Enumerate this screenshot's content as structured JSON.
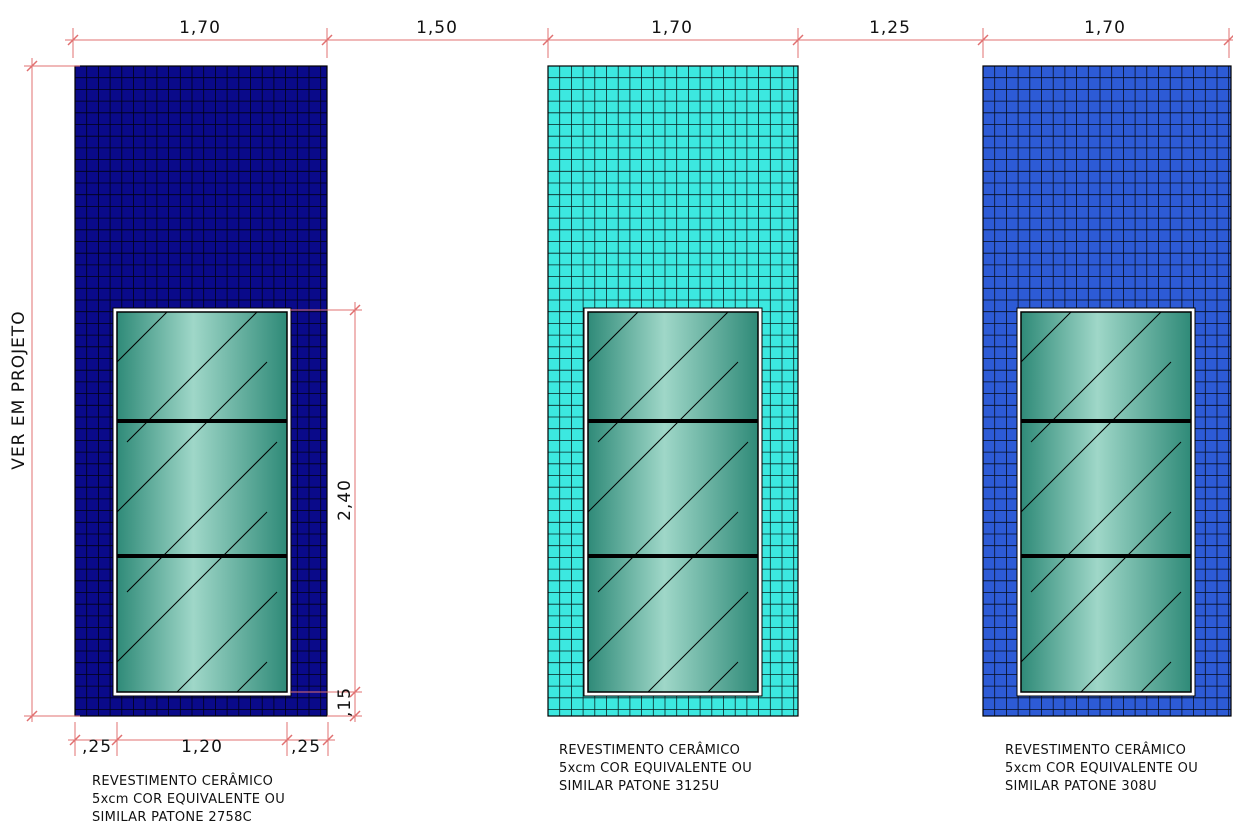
{
  "colors": {
    "dimension_line": "#e07070",
    "grid_line": "#000000",
    "glass_light": "#9fd7c8",
    "glass_dark": "#2f8a78",
    "frame": "#ffffff",
    "mullion": "#000000",
    "text": "#111111"
  },
  "top_dimensions": [
    "1,70",
    "1,50",
    "1,70",
    "1,25",
    "1,70"
  ],
  "left_dimension_label": "VER EM PROJETO",
  "window_height_label": "2,40",
  "sill_height_label": ",15",
  "bottom_dimensions": [
    ",25",
    "1,20",
    ",25"
  ],
  "panels": [
    {
      "tile_color": "#0a0a8a",
      "note_lines": [
        "REVESTIMENTO CERÂMICO",
        "5xcm COR EQUIVALENTE OU",
        "SIMILAR PATONE 2758C"
      ]
    },
    {
      "tile_color": "#3ce8e0",
      "note_lines": [
        "REVESTIMENTO CERÂMICO",
        "5xcm COR EQUIVALENTE OU",
        "SIMILAR PATONE 3125U"
      ]
    },
    {
      "tile_color": "#2d5bd6",
      "note_lines": [
        "REVESTIMENTO CERÂMICO",
        "5xcm COR EQUIVALENTE OU",
        "SIMILAR PATONE 308U"
      ]
    }
  ]
}
